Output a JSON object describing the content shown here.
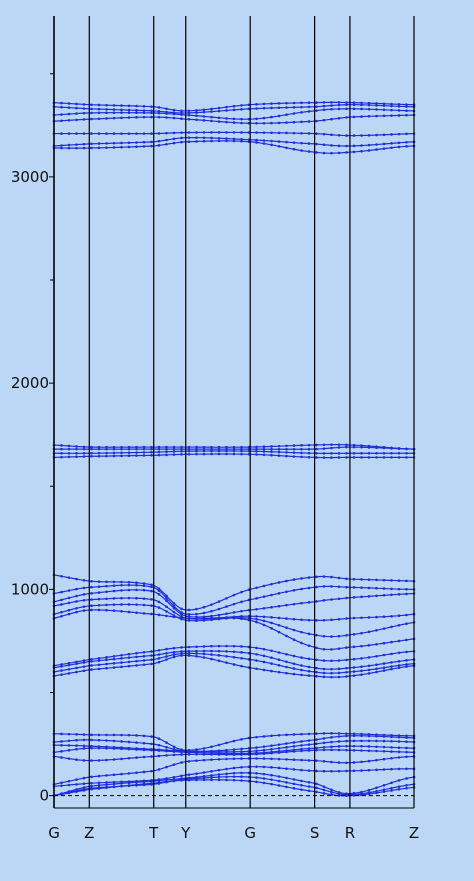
{
  "chart_data": {
    "type": "line",
    "title": "",
    "xlabel": "",
    "ylabel": "",
    "ylim": [
      -60,
      3780
    ],
    "yticks_major": [
      0,
      1000,
      2000,
      3000
    ],
    "yticks_minor": [
      500,
      1500,
      2500,
      3500
    ],
    "tick_labels": [
      "0",
      "1000",
      "2000",
      "3000"
    ],
    "kpoints": [
      {
        "label": "G",
        "x": 0.0
      },
      {
        "label": "Z",
        "x": 0.098
      },
      {
        "label": "T",
        "x": 0.277
      },
      {
        "label": "Y",
        "x": 0.366
      },
      {
        "label": "G",
        "x": 0.545
      },
      {
        "label": "S",
        "x": 0.724
      },
      {
        "label": "R",
        "x": 0.822
      },
      {
        "label": "Z",
        "x": 1.0
      }
    ],
    "xlim": [
      0,
      1
    ],
    "zero_line": {
      "y": 0,
      "style": "dashed"
    },
    "grid": false,
    "colors": {
      "background": "#bcd7f5",
      "bands": "#1e2fd6",
      "frame": "#000000"
    },
    "series": [
      {
        "values": [
          0,
          30,
          60,
          75,
          70,
          20,
          0,
          40,
          60,
          35
        ]
      },
      {
        "values": [
          0,
          35,
          55,
          80,
          90,
          40,
          5,
          55,
          75,
          45
        ]
      },
      {
        "values": [
          0,
          45,
          70,
          85,
          110,
          60,
          10,
          90,
          95,
          60
        ]
      },
      {
        "values": [
          45,
          60,
          75,
          100,
          140,
          120,
          120,
          130,
          110,
          90
        ]
      },
      {
        "values": [
          55,
          90,
          120,
          165,
          180,
          170,
          160,
          190,
          175,
          140
        ]
      },
      {
        "values": [
          190,
          170,
          190,
          200,
          200,
          220,
          220,
          210,
          205,
          200
        ]
      },
      {
        "values": [
          210,
          230,
          220,
          210,
          205,
          230,
          240,
          230,
          225,
          215
        ]
      },
      {
        "values": [
          245,
          240,
          225,
          215,
          215,
          250,
          265,
          260,
          240,
          235
        ]
      },
      {
        "values": [
          260,
          270,
          250,
          215,
          230,
          270,
          290,
          280,
          270,
          260
        ]
      },
      {
        "values": [
          300,
          295,
          285,
          220,
          280,
          300,
          300,
          290,
          300,
          300
        ]
      },
      {
        "values": [
          580,
          610,
          640,
          680,
          620,
          580,
          580,
          630,
          640,
          620
        ]
      },
      {
        "values": [
          600,
          630,
          660,
          690,
          660,
          600,
          600,
          640,
          660,
          640
        ]
      },
      {
        "values": [
          620,
          650,
          680,
          700,
          690,
          620,
          620,
          660,
          680,
          660
        ]
      },
      {
        "values": [
          630,
          660,
          700,
          720,
          720,
          660,
          660,
          700,
          700,
          680
        ]
      },
      {
        "values": [
          860,
          900,
          880,
          860,
          850,
          720,
          720,
          760,
          800,
          860
        ]
      },
      {
        "values": [
          880,
          920,
          920,
          850,
          860,
          780,
          780,
          840,
          880,
          900
        ]
      },
      {
        "values": [
          920,
          950,
          950,
          860,
          870,
          850,
          860,
          880,
          940,
          940
        ]
      },
      {
        "values": [
          940,
          980,
          990,
          870,
          900,
          940,
          960,
          980,
          990,
          980
        ]
      },
      {
        "values": [
          980,
          1010,
          1010,
          880,
          950,
          1010,
          1010,
          1000,
          1010,
          1020
        ]
      },
      {
        "values": [
          1070,
          1040,
          1020,
          900,
          1000,
          1060,
          1050,
          1040,
          1030,
          1040
        ]
      },
      {
        "values": [
          1640,
          1645,
          1650,
          1655,
          1655,
          1640,
          1640,
          1640,
          1640,
          1640
        ]
      },
      {
        "values": [
          1660,
          1660,
          1665,
          1670,
          1670,
          1660,
          1660,
          1660,
          1660,
          1660
        ]
      },
      {
        "values": [
          1680,
          1680,
          1680,
          1680,
          1680,
          1680,
          1690,
          1680,
          1680,
          1680
        ]
      },
      {
        "values": [
          1700,
          1690,
          1690,
          1690,
          1690,
          1700,
          1700,
          1680,
          1680,
          1700
        ]
      },
      {
        "values": [
          3140,
          3140,
          3150,
          3170,
          3170,
          3120,
          3120,
          3150,
          3140,
          3130
        ]
      },
      {
        "values": [
          3150,
          3160,
          3170,
          3190,
          3180,
          3160,
          3150,
          3170,
          3180,
          3160
        ]
      },
      {
        "values": [
          3210,
          3210,
          3210,
          3215,
          3215,
          3210,
          3200,
          3210,
          3220,
          3230
        ]
      },
      {
        "values": [
          3270,
          3280,
          3290,
          3280,
          3260,
          3270,
          3290,
          3300,
          3310,
          3300
        ]
      },
      {
        "values": [
          3300,
          3310,
          3310,
          3300,
          3280,
          3320,
          3330,
          3320,
          3320,
          3310
        ]
      },
      {
        "values": [
          3340,
          3330,
          3320,
          3310,
          3330,
          3340,
          3350,
          3340,
          3340,
          3330
        ]
      },
      {
        "values": [
          3360,
          3350,
          3340,
          3320,
          3350,
          3360,
          3360,
          3350,
          3350,
          3340
        ]
      }
    ]
  }
}
